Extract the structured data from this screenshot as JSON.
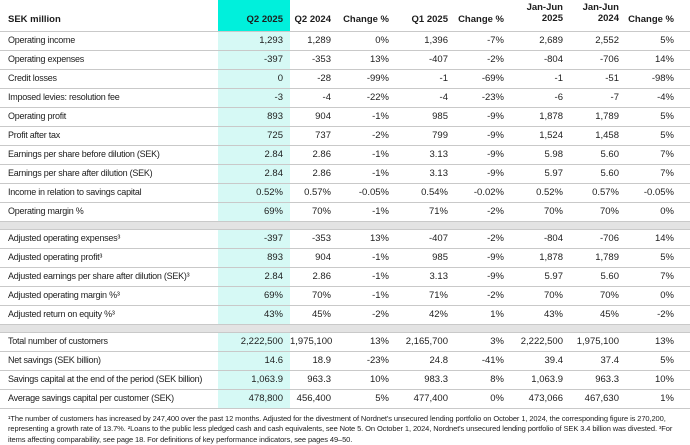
{
  "colors": {
    "accent_cyan": "#00f0dc",
    "highlight_light_cyan": "#d6f9f5",
    "separator_gray": "#e3e3e3",
    "row_border": "#c9c9c9",
    "text": "#1d1d1d"
  },
  "table": {
    "unit_header": "SEK million",
    "columns": [
      "Q2 2025",
      "Q2 2024",
      "Change %",
      "Q1 2025",
      "Change %",
      "Jan-Jun 2025",
      "Jan-Jun 2024",
      "Change %"
    ],
    "highlighted_column": "Q2 2025",
    "groups": [
      {
        "name": "income-statement",
        "rows": [
          {
            "label": "Operating income",
            "values": [
              "1,293",
              "1,289",
              "0%",
              "1,396",
              "-7%",
              "2,689",
              "2,552",
              "5%"
            ]
          },
          {
            "label": "Operating expenses",
            "values": [
              "-397",
              "-353",
              "13%",
              "-407",
              "-2%",
              "-804",
              "-706",
              "14%"
            ]
          },
          {
            "label": "Credit losses",
            "values": [
              "0",
              "-28",
              "-99%",
              "-1",
              "-69%",
              "-1",
              "-51",
              "-98%"
            ]
          },
          {
            "label": "Imposed levies: resolution fee",
            "values": [
              "-3",
              "-4",
              "-22%",
              "-4",
              "-23%",
              "-6",
              "-7",
              "-4%"
            ]
          },
          {
            "label": "Operating profit",
            "values": [
              "893",
              "904",
              "-1%",
              "985",
              "-9%",
              "1,878",
              "1,789",
              "5%"
            ]
          },
          {
            "label": "Profit after tax",
            "values": [
              "725",
              "737",
              "-2%",
              "799",
              "-9%",
              "1,524",
              "1,458",
              "5%"
            ]
          },
          {
            "label": "Earnings per share before dilution (SEK)",
            "values": [
              "2.84",
              "2.86",
              "-1%",
              "3.13",
              "-9%",
              "5.98",
              "5.60",
              "7%"
            ]
          },
          {
            "label": "Earnings per share after dilution (SEK)",
            "values": [
              "2.84",
              "2.86",
              "-1%",
              "3.13",
              "-9%",
              "5.97",
              "5.60",
              "7%"
            ]
          },
          {
            "label": "Income in relation to savings capital",
            "values": [
              "0.52%",
              "0.57%",
              "-0.05%",
              "0.54%",
              "-0.02%",
              "0.52%",
              "0.57%",
              "-0.05%"
            ]
          },
          {
            "label": "Operating margin %",
            "values": [
              "69%",
              "70%",
              "-1%",
              "71%",
              "-2%",
              "70%",
              "70%",
              "0%"
            ]
          }
        ]
      },
      {
        "name": "adjusted-measures",
        "rows": [
          {
            "label": "Adjusted operating expenses³",
            "values": [
              "-397",
              "-353",
              "13%",
              "-407",
              "-2%",
              "-804",
              "-706",
              "14%"
            ]
          },
          {
            "label": "Adjusted operating profit³",
            "values": [
              "893",
              "904",
              "-1%",
              "985",
              "-9%",
              "1,878",
              "1,789",
              "5%"
            ]
          },
          {
            "label": "Adjusted earnings per share after dilution (SEK)³",
            "values": [
              "2.84",
              "2.86",
              "-1%",
              "3.13",
              "-9%",
              "5.97",
              "5.60",
              "7%"
            ]
          },
          {
            "label": "Adjusted operating margin %³",
            "values": [
              "69%",
              "70%",
              "-1%",
              "71%",
              "-2%",
              "70%",
              "70%",
              "0%"
            ]
          },
          {
            "label": "Adjusted return on equity %³",
            "values": [
              "43%",
              "45%",
              "-2%",
              "42%",
              "1%",
              "43%",
              "45%",
              "-2%"
            ]
          }
        ]
      },
      {
        "name": "customer-metrics",
        "rows": [
          {
            "label": "Total number of customers",
            "values": [
              "2,222,500",
              "1,975,100",
              "13%",
              "2,165,700",
              "3%",
              "2,222,500",
              "1,975,100",
              "13%"
            ]
          },
          {
            "label": "Net savings (SEK billion)",
            "values": [
              "14.6",
              "18.9",
              "-23%",
              "24.8",
              "-41%",
              "39.4",
              "37.4",
              "5%"
            ]
          },
          {
            "label": "Savings capital at the end of the period (SEK billion)",
            "values": [
              "1,063.9",
              "963.3",
              "10%",
              "983.3",
              "8%",
              "1,063.9",
              "963.3",
              "10%"
            ]
          },
          {
            "label": "Average savings capital per customer (SEK)",
            "values": [
              "478,800",
              "456,400",
              "5%",
              "477,400",
              "0%",
              "473,066",
              "467,630",
              "1%"
            ]
          }
        ]
      }
    ]
  },
  "footnotes": "¹The number of customers has increased by 247,400 over the past 12 months. Adjusted for the divestment of Nordnet's unsecured lending portfolio on October 1, 2024, the corresponding figure is 270,200, representing a growth rate of 13.7%. ²Loans to the public less pledged cash and cash equivalents, see Note 5. On October 1, 2024, Nordnet's unsecured lending portfolio of SEK 3.4 billion was divested. ³For items affecting comparability, see page 18. For definitions of key performance indicators, see pages 49–50."
}
